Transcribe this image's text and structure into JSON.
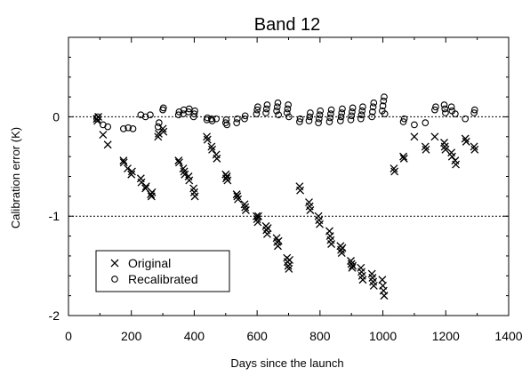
{
  "chart_data": {
    "type": "scatter",
    "title": "Band 12",
    "xlabel": "Days since the launch",
    "ylabel": "Calibration error (K)",
    "xlim": [
      0,
      1400
    ],
    "ylim": [
      -2,
      0.8
    ],
    "xticks": [
      0,
      200,
      400,
      600,
      800,
      1000,
      1200,
      1400
    ],
    "yticks": [
      -2,
      -1,
      0
    ],
    "reference_lines": [
      0,
      -1
    ],
    "legend": {
      "position": "bottom-left"
    },
    "series": [
      {
        "name": "Original",
        "marker": "x",
        "points": [
          [
            90,
            -0.02
          ],
          [
            92,
            -0.04
          ],
          [
            95,
            0.0
          ],
          [
            110,
            -0.18
          ],
          [
            125,
            -0.28
          ],
          [
            175,
            -0.44
          ],
          [
            176,
            -0.46
          ],
          [
            188,
            -0.52
          ],
          [
            200,
            -0.58
          ],
          [
            202,
            -0.55
          ],
          [
            230,
            -0.62
          ],
          [
            232,
            -0.66
          ],
          [
            245,
            -0.72
          ],
          [
            247,
            -0.7
          ],
          [
            262,
            -0.78
          ],
          [
            264,
            -0.8
          ],
          [
            266,
            -0.76
          ],
          [
            285,
            -0.2
          ],
          [
            287,
            -0.17
          ],
          [
            300,
            -0.12
          ],
          [
            302,
            -0.15
          ],
          [
            350,
            -0.44
          ],
          [
            352,
            -0.46
          ],
          [
            365,
            -0.52
          ],
          [
            368,
            -0.55
          ],
          [
            370,
            -0.58
          ],
          [
            382,
            -0.6
          ],
          [
            384,
            -0.64
          ],
          [
            398,
            -0.72
          ],
          [
            400,
            -0.76
          ],
          [
            402,
            -0.8
          ],
          [
            440,
            -0.2
          ],
          [
            442,
            -0.23
          ],
          [
            455,
            -0.3
          ],
          [
            457,
            -0.33
          ],
          [
            470,
            -0.38
          ],
          [
            472,
            -0.42
          ],
          [
            500,
            -0.58
          ],
          [
            502,
            -0.62
          ],
          [
            504,
            -0.6
          ],
          [
            506,
            -0.64
          ],
          [
            535,
            -0.78
          ],
          [
            537,
            -0.8
          ],
          [
            539,
            -0.83
          ],
          [
            560,
            -0.88
          ],
          [
            562,
            -0.91
          ],
          [
            564,
            -0.94
          ],
          [
            598,
            -1.0
          ],
          [
            600,
            -1.03
          ],
          [
            602,
            -1.06
          ],
          [
            604,
            -1.0
          ],
          [
            628,
            -1.1
          ],
          [
            630,
            -1.14
          ],
          [
            632,
            -1.18
          ],
          [
            634,
            -1.12
          ],
          [
            662,
            -1.22
          ],
          [
            664,
            -1.26
          ],
          [
            666,
            -1.3
          ],
          [
            668,
            -1.25
          ],
          [
            695,
            -1.42
          ],
          [
            697,
            -1.46
          ],
          [
            699,
            -1.5
          ],
          [
            701,
            -1.53
          ],
          [
            703,
            -1.44
          ],
          [
            735,
            -0.7
          ],
          [
            737,
            -0.74
          ],
          [
            765,
            -0.86
          ],
          [
            767,
            -0.9
          ],
          [
            769,
            -0.94
          ],
          [
            795,
            -1.0
          ],
          [
            797,
            -1.04
          ],
          [
            799,
            -1.08
          ],
          [
            830,
            -1.15
          ],
          [
            832,
            -1.2
          ],
          [
            834,
            -1.24
          ],
          [
            836,
            -1.28
          ],
          [
            865,
            -1.3
          ],
          [
            867,
            -1.34
          ],
          [
            869,
            -1.37
          ],
          [
            871,
            -1.32
          ],
          [
            898,
            -1.45
          ],
          [
            900,
            -1.48
          ],
          [
            902,
            -1.52
          ],
          [
            904,
            -1.5
          ],
          [
            930,
            -1.52
          ],
          [
            932,
            -1.56
          ],
          [
            934,
            -1.6
          ],
          [
            936,
            -1.64
          ],
          [
            965,
            -1.58
          ],
          [
            967,
            -1.62
          ],
          [
            969,
            -1.66
          ],
          [
            971,
            -1.7
          ],
          [
            998,
            -1.64
          ],
          [
            1000,
            -1.7
          ],
          [
            1002,
            -1.75
          ],
          [
            1004,
            -1.8
          ],
          [
            1035,
            -0.52
          ],
          [
            1037,
            -0.55
          ],
          [
            1065,
            -0.4
          ],
          [
            1067,
            -0.42
          ],
          [
            1100,
            -0.2
          ],
          [
            1135,
            -0.3
          ],
          [
            1137,
            -0.33
          ],
          [
            1165,
            -0.2
          ],
          [
            1195,
            -0.26
          ],
          [
            1197,
            -0.3
          ],
          [
            1199,
            -0.33
          ],
          [
            1218,
            -0.36
          ],
          [
            1220,
            -0.4
          ],
          [
            1230,
            -0.44
          ],
          [
            1232,
            -0.48
          ],
          [
            1262,
            -0.22
          ],
          [
            1265,
            -0.25
          ],
          [
            1290,
            -0.3
          ],
          [
            1292,
            -0.33
          ]
        ]
      },
      {
        "name": "Recalibrated",
        "marker": "o",
        "points": [
          [
            90,
            -0.02
          ],
          [
            93,
            0.0
          ],
          [
            110,
            -0.08
          ],
          [
            125,
            -0.1
          ],
          [
            175,
            -0.12
          ],
          [
            190,
            -0.11
          ],
          [
            205,
            -0.12
          ],
          [
            230,
            0.02
          ],
          [
            245,
            0.0
          ],
          [
            260,
            0.02
          ],
          [
            285,
            -0.1
          ],
          [
            288,
            -0.06
          ],
          [
            300,
            0.07
          ],
          [
            302,
            0.09
          ],
          [
            350,
            0.02
          ],
          [
            352,
            0.05
          ],
          [
            365,
            0.03
          ],
          [
            367,
            0.07
          ],
          [
            382,
            0.05
          ],
          [
            384,
            0.08
          ],
          [
            398,
            0.0
          ],
          [
            400,
            0.03
          ],
          [
            402,
            0.06
          ],
          [
            440,
            -0.03
          ],
          [
            442,
            -0.01
          ],
          [
            455,
            -0.02
          ],
          [
            457,
            -0.04
          ],
          [
            470,
            -0.02
          ],
          [
            500,
            -0.06
          ],
          [
            502,
            -0.03
          ],
          [
            504,
            -0.08
          ],
          [
            535,
            -0.06
          ],
          [
            537,
            -0.02
          ],
          [
            560,
            -0.02
          ],
          [
            562,
            0.01
          ],
          [
            598,
            0.03
          ],
          [
            600,
            0.07
          ],
          [
            602,
            0.1
          ],
          [
            628,
            0.04
          ],
          [
            630,
            0.08
          ],
          [
            632,
            0.12
          ],
          [
            662,
            0.06
          ],
          [
            664,
            0.1
          ],
          [
            666,
            0.14
          ],
          [
            668,
            0.02
          ],
          [
            695,
            0.04
          ],
          [
            697,
            0.08
          ],
          [
            699,
            0.12
          ],
          [
            701,
            0.0
          ],
          [
            735,
            -0.05
          ],
          [
            737,
            -0.02
          ],
          [
            765,
            -0.04
          ],
          [
            767,
            0.0
          ],
          [
            769,
            0.04
          ],
          [
            795,
            -0.06
          ],
          [
            797,
            -0.02
          ],
          [
            799,
            0.02
          ],
          [
            801,
            0.06
          ],
          [
            830,
            -0.05
          ],
          [
            832,
            -0.01
          ],
          [
            834,
            0.03
          ],
          [
            836,
            0.07
          ],
          [
            865,
            -0.04
          ],
          [
            867,
            0.0
          ],
          [
            869,
            0.04
          ],
          [
            871,
            0.08
          ],
          [
            898,
            -0.03
          ],
          [
            900,
            0.01
          ],
          [
            902,
            0.05
          ],
          [
            904,
            0.09
          ],
          [
            930,
            -0.02
          ],
          [
            932,
            0.02
          ],
          [
            934,
            0.06
          ],
          [
            936,
            0.1
          ],
          [
            965,
            0.0
          ],
          [
            967,
            0.05
          ],
          [
            969,
            0.1
          ],
          [
            971,
            0.14
          ],
          [
            998,
            0.06
          ],
          [
            1000,
            0.11
          ],
          [
            1002,
            0.16
          ],
          [
            1004,
            0.2
          ],
          [
            1006,
            0.03
          ],
          [
            1065,
            -0.05
          ],
          [
            1068,
            -0.02
          ],
          [
            1100,
            -0.08
          ],
          [
            1135,
            -0.06
          ],
          [
            1165,
            0.07
          ],
          [
            1168,
            0.1
          ],
          [
            1195,
            0.12
          ],
          [
            1197,
            0.08
          ],
          [
            1199,
            0.04
          ],
          [
            1218,
            0.1
          ],
          [
            1220,
            0.06
          ],
          [
            1230,
            0.03
          ],
          [
            1262,
            -0.02
          ],
          [
            1290,
            0.04
          ],
          [
            1292,
            0.07
          ]
        ]
      }
    ]
  }
}
